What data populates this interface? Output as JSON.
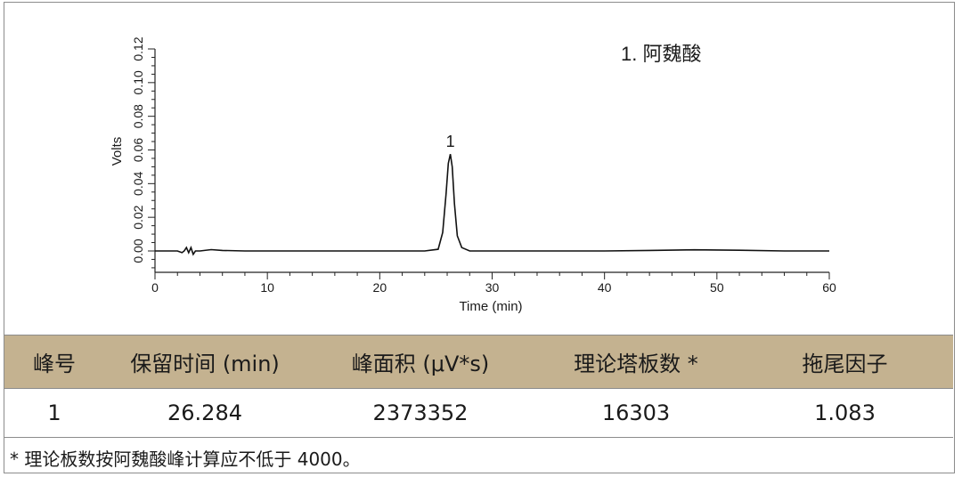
{
  "chart_data": {
    "type": "line",
    "ylabel": "Volts",
    "xlabel": "Time (min)",
    "xlim": [
      0,
      60
    ],
    "ylim": [
      -0.01,
      0.12
    ],
    "x_ticks": [
      "0",
      "10",
      "20",
      "30",
      "40",
      "50",
      "60"
    ],
    "y_ticks": [
      "0.00",
      "0.02",
      "0.04",
      "0.06",
      "0.08",
      "0.10",
      "0.12"
    ],
    "legend_text": "1. 阿魏酸",
    "peak_label": "1",
    "grid": false,
    "series": [
      {
        "x": [
          0,
          2.0,
          2.4,
          2.6,
          2.8,
          3.0,
          3.2,
          3.4,
          3.6,
          4.0,
          5.0,
          6.0,
          8.0,
          12,
          16,
          20,
          24,
          25.2,
          25.6,
          25.9,
          26.1,
          26.284,
          26.45,
          26.65,
          26.9,
          27.3,
          28,
          32,
          40,
          44,
          48,
          52,
          56,
          60
        ],
        "y": [
          0.0,
          0.0,
          -0.001,
          0.0,
          0.002,
          -0.001,
          0.002,
          -0.002,
          0.0,
          0.0,
          0.0008,
          0.0003,
          0.0,
          0.0,
          0.0,
          0.0,
          0.0,
          0.001,
          0.011,
          0.034,
          0.052,
          0.0575,
          0.05,
          0.028,
          0.009,
          0.002,
          0.0,
          0.0,
          0.0,
          0.0003,
          0.0007,
          0.0004,
          0.0,
          0.0
        ]
      }
    ]
  },
  "table": {
    "headers": [
      "峰号",
      "保留时间 (min)",
      "峰面积 (μV*s)",
      "理论塔板数 *",
      "拖尾因子"
    ],
    "row": [
      "1",
      "26.284",
      "2373352",
      "16303",
      "1.083"
    ]
  },
  "footnote": "* 理论板数按阿魏酸峰计算应不低于 4000。"
}
